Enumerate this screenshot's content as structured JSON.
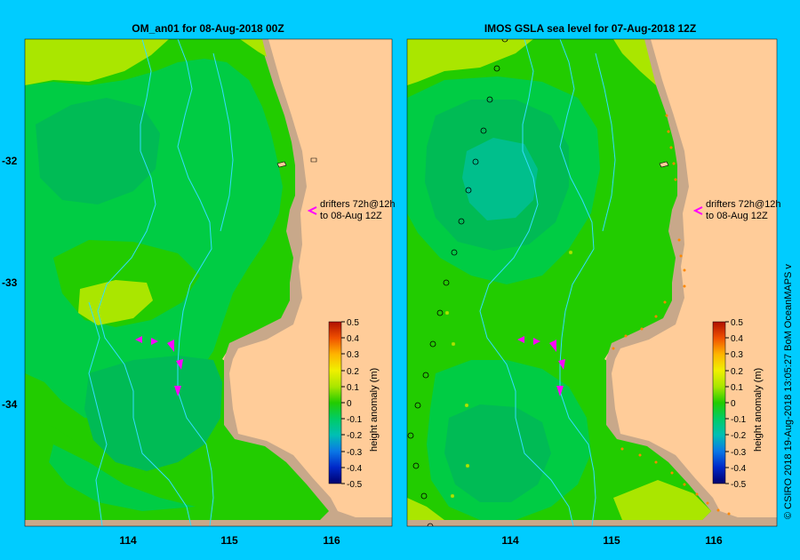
{
  "left_panel": {
    "title": "OM_an01  for 08-Aug-2018 00Z",
    "annotation": [
      "drifters 72h@12h",
      "to 08-Aug 12Z"
    ]
  },
  "right_panel": {
    "title": "IMOS GSLA sea level  for 07-Aug-2018 12Z",
    "annotation": [
      "drifters 72h@12h",
      "to 08-Aug 12Z"
    ]
  },
  "axes": {
    "x_ticks": [
      "114",
      "115",
      "116"
    ],
    "y_ticks": [
      "-32",
      "-33",
      "-34"
    ]
  },
  "colorbar": {
    "label": "height anomaly (m)",
    "ticks": [
      "0.5",
      "0.4",
      "0.3",
      "0.2",
      "0.1",
      "0",
      "-0.1",
      "-0.2",
      "-0.3",
      "-0.4",
      "-0.5"
    ]
  },
  "credit": "© CSIRO 2018   19-Aug-2018 13:05:27 BoM OceanMAPS v",
  "colors": {
    "background": "#00CCFF",
    "land": "#FFCC99",
    "shelf": "#C8A88A",
    "drifter": "#FF00FF"
  }
}
